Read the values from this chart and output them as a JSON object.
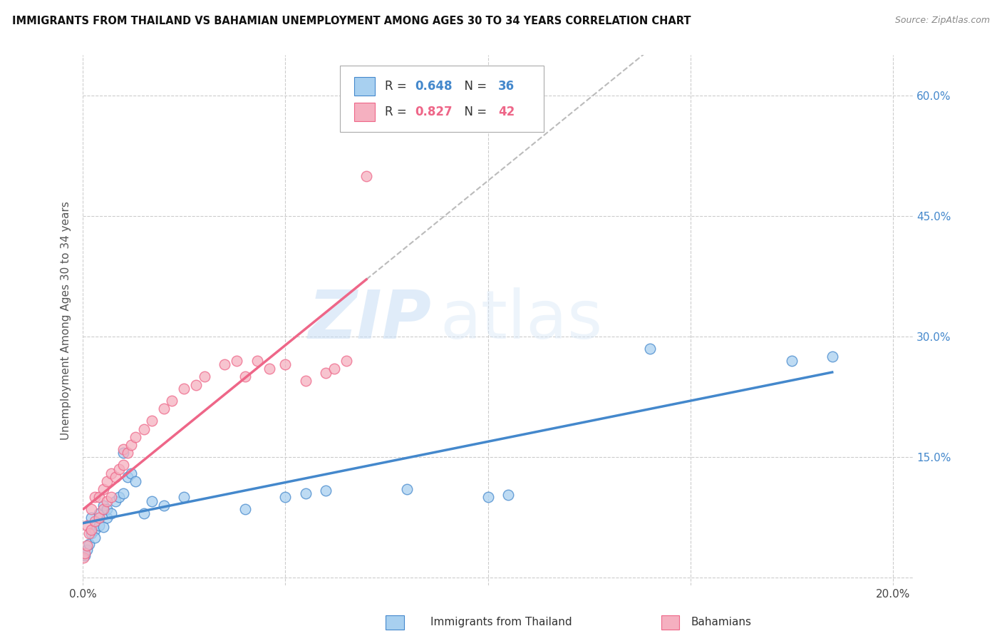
{
  "title": "IMMIGRANTS FROM THAILAND VS BAHAMIAN UNEMPLOYMENT AMONG AGES 30 TO 34 YEARS CORRELATION CHART",
  "source": "Source: ZipAtlas.com",
  "ylabel": "Unemployment Among Ages 30 to 34 years",
  "xlim": [
    0.0,
    0.205
  ],
  "ylim": [
    -0.01,
    0.65
  ],
  "x_ticks": [
    0.0,
    0.05,
    0.1,
    0.15,
    0.2
  ],
  "x_tick_labels": [
    "0.0%",
    "",
    "",
    "",
    "20.0%"
  ],
  "y_ticks_right": [
    0.0,
    0.15,
    0.3,
    0.45,
    0.6
  ],
  "y_tick_labels_right": [
    "",
    "15.0%",
    "30.0%",
    "45.0%",
    "60.0%"
  ],
  "legend_r1": "0.648",
  "legend_n1": "36",
  "legend_r2": "0.827",
  "legend_n2": "42",
  "color_blue": "#A8D0F0",
  "color_pink": "#F5B0C0",
  "color_blue_line": "#4488CC",
  "color_pink_line": "#EE6688",
  "color_dashed": "#BBBBBB",
  "watermark_zip": "ZIP",
  "watermark_atlas": "atlas",
  "background_color": "#FFFFFF",
  "grid_color": "#CCCCCC",
  "thai_x": [
    0.0002,
    0.0005,
    0.001,
    0.0015,
    0.002,
    0.002,
    0.003,
    0.003,
    0.004,
    0.004,
    0.005,
    0.005,
    0.006,
    0.006,
    0.007,
    0.008,
    0.009,
    0.01,
    0.01,
    0.011,
    0.012,
    0.013,
    0.015,
    0.017,
    0.02,
    0.025,
    0.04,
    0.05,
    0.055,
    0.06,
    0.08,
    0.1,
    0.105,
    0.14,
    0.175,
    0.185
  ],
  "thai_y": [
    0.03,
    0.028,
    0.035,
    0.042,
    0.055,
    0.075,
    0.06,
    0.05,
    0.065,
    0.08,
    0.063,
    0.09,
    0.075,
    0.085,
    0.08,
    0.095,
    0.1,
    0.105,
    0.155,
    0.125,
    0.13,
    0.12,
    0.08,
    0.095,
    0.09,
    0.1,
    0.085,
    0.1,
    0.105,
    0.108,
    0.11,
    0.1,
    0.103,
    0.285,
    0.27,
    0.275
  ],
  "bah_x": [
    0.0002,
    0.0005,
    0.001,
    0.001,
    0.0015,
    0.002,
    0.002,
    0.003,
    0.003,
    0.004,
    0.004,
    0.005,
    0.005,
    0.006,
    0.006,
    0.007,
    0.007,
    0.008,
    0.009,
    0.01,
    0.01,
    0.011,
    0.012,
    0.013,
    0.015,
    0.017,
    0.02,
    0.022,
    0.025,
    0.028,
    0.03,
    0.035,
    0.038,
    0.04,
    0.043,
    0.046,
    0.05,
    0.055,
    0.06,
    0.062,
    0.065,
    0.07
  ],
  "bah_y": [
    0.025,
    0.03,
    0.04,
    0.065,
    0.055,
    0.06,
    0.085,
    0.07,
    0.1,
    0.075,
    0.1,
    0.085,
    0.11,
    0.095,
    0.12,
    0.1,
    0.13,
    0.125,
    0.135,
    0.14,
    0.16,
    0.155,
    0.165,
    0.175,
    0.185,
    0.195,
    0.21,
    0.22,
    0.235,
    0.24,
    0.25,
    0.265,
    0.27,
    0.25,
    0.27,
    0.26,
    0.265,
    0.245,
    0.255,
    0.26,
    0.27,
    0.5
  ]
}
